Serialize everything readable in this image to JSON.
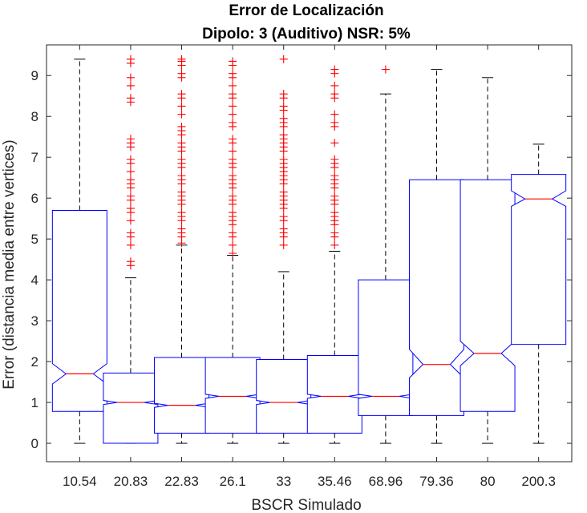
{
  "chart_data": {
    "type": "boxplot",
    "title": "Error de Localización",
    "subtitle": "Dipolo: 3 (Auditivo) NSR: 5%",
    "xlabel": "BSCR Simulado",
    "ylabel": "Error (distancia media entre vertices)",
    "categories": [
      "10.54",
      "20.83",
      "22.83",
      "26.1",
      "33",
      "35.46",
      "68.96",
      "79.36",
      "80",
      "200.3"
    ],
    "ylim": [
      -0.45,
      9.75
    ],
    "yticks": [
      0,
      1,
      2,
      3,
      4,
      5,
      6,
      7,
      8,
      9
    ],
    "notched": true,
    "grid": false,
    "boxes": [
      {
        "category": "10.54",
        "whisker_low": 0,
        "q1": 0.78,
        "median": 1.7,
        "q3": 5.7,
        "whisker_high": 9.4,
        "notch_low": 1.45,
        "notch_high": 1.95,
        "outliers": []
      },
      {
        "category": "20.83",
        "whisker_low": 0,
        "q1": 0,
        "median": 1.0,
        "q3": 1.72,
        "whisker_high": 4.05,
        "notch_low": 0.95,
        "notch_high": 1.05,
        "outliers": [
          4.35,
          4.45,
          4.85,
          5.05,
          5.15,
          5.45,
          5.65,
          5.75,
          5.95,
          6.05,
          6.25,
          6.35,
          6.45,
          6.65,
          6.85,
          6.95,
          7.25,
          7.35,
          7.45,
          8.35,
          8.45,
          8.75,
          8.95,
          9.3,
          9.4
        ]
      },
      {
        "category": "22.83",
        "whisker_low": 0,
        "q1": 0.25,
        "median": 0.93,
        "q3": 2.1,
        "whisker_high": 4.85,
        "notch_low": 0.88,
        "notch_high": 0.98,
        "outliers": [
          4.9,
          5.05,
          5.15,
          5.25,
          5.45,
          5.55,
          5.65,
          5.85,
          5.95,
          6.05,
          6.15,
          6.35,
          6.45,
          6.55,
          6.75,
          6.85,
          6.95,
          7.15,
          7.25,
          7.35,
          7.55,
          7.65,
          7.75,
          8.05,
          8.25,
          8.45,
          8.55,
          8.95,
          9.05,
          9.25,
          9.35,
          9.4
        ]
      },
      {
        "category": "26.1",
        "whisker_low": 0,
        "q1": 0.25,
        "median": 1.15,
        "q3": 2.1,
        "whisker_high": 4.6,
        "notch_low": 1.1,
        "notch_high": 1.2,
        "outliers": [
          4.65,
          4.85,
          5.05,
          5.15,
          5.35,
          5.45,
          5.55,
          5.65,
          5.85,
          5.95,
          6.05,
          6.25,
          6.35,
          6.45,
          6.55,
          6.75,
          6.85,
          6.95,
          7.15,
          7.35,
          7.45,
          7.75,
          7.85,
          8.05,
          8.25,
          8.45,
          8.55,
          8.75,
          8.95,
          9.05,
          9.25,
          9.35
        ]
      },
      {
        "category": "33",
        "whisker_low": 0,
        "q1": 0.25,
        "median": 1.0,
        "q3": 2.05,
        "whisker_high": 4.2,
        "notch_low": 0.95,
        "notch_high": 1.05,
        "outliers": [
          4.85,
          5.05,
          5.15,
          5.25,
          5.45,
          5.55,
          5.75,
          5.85,
          5.95,
          6.05,
          6.15,
          6.35,
          6.45,
          6.55,
          6.65,
          6.75,
          6.85,
          6.95,
          7.15,
          7.25,
          7.35,
          7.45,
          7.55,
          7.75,
          7.85,
          7.95,
          8.15,
          8.25,
          8.45,
          8.55,
          9.4
        ]
      },
      {
        "category": "35.46",
        "whisker_low": 0,
        "q1": 0.25,
        "median": 1.15,
        "q3": 2.15,
        "whisker_high": 4.7,
        "notch_low": 1.1,
        "notch_high": 1.2,
        "outliers": [
          4.85,
          5.05,
          5.15,
          5.35,
          5.45,
          5.55,
          5.65,
          5.85,
          5.95,
          6.05,
          6.25,
          6.35,
          6.45,
          6.55,
          6.75,
          6.85,
          6.95,
          7.35,
          7.75,
          7.85,
          8.05,
          8.45,
          8.55,
          8.75,
          9.05,
          9.15
        ]
      },
      {
        "category": "68.96",
        "whisker_low": 0,
        "q1": 0.68,
        "median": 1.15,
        "q3": 4.0,
        "whisker_high": 8.55,
        "notch_low": 1.1,
        "notch_high": 1.2,
        "outliers": [
          9.15
        ]
      },
      {
        "category": "79.36",
        "whisker_low": 0,
        "q1": 0.68,
        "median": 1.93,
        "q3": 6.45,
        "whisker_high": 9.15,
        "notch_low": 1.6,
        "notch_high": 2.3,
        "outliers": []
      },
      {
        "category": "80",
        "whisker_low": 0,
        "q1": 0.78,
        "median": 2.2,
        "q3": 6.45,
        "whisker_high": 8.95,
        "notch_low": 1.9,
        "notch_high": 2.5,
        "outliers": []
      },
      {
        "category": "200.3",
        "whisker_low": 0,
        "q1": 2.42,
        "median": 5.98,
        "q3": 6.58,
        "whisker_high": 7.32,
        "notch_low": 5.8,
        "notch_high": 6.18,
        "outliers": []
      }
    ],
    "colors": {
      "box": "#0000ff",
      "median": "#ff0000",
      "outlier": "#ff0000",
      "whisker": "#000000",
      "axis": "#262626"
    }
  }
}
